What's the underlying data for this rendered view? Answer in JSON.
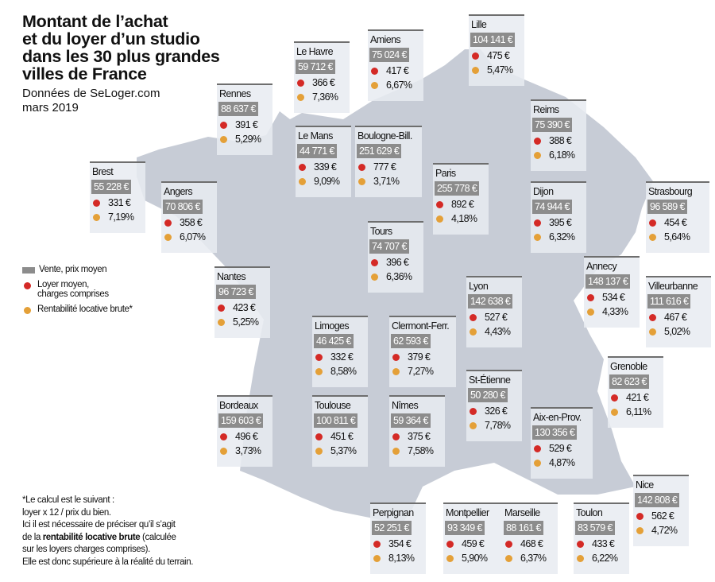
{
  "header": {
    "title_lines": [
      "Montant de l’achat",
      "et du loyer d’un studio",
      "dans les 30 plus grandes",
      "villes de France"
    ],
    "subtitle_lines": [
      "Données de SeLoger.com",
      "mars 2019"
    ]
  },
  "legend": {
    "sale": "Vente, prix moyen",
    "rent_line1": "Loyer moyen,",
    "rent_line2": "charges comprises",
    "yield": "Rentabilité locative brute*"
  },
  "colors": {
    "map": "#c7ccd6",
    "rent_dot": "#d42a26",
    "yield_dot": "#e4a038",
    "price_box": "#8c8c8c"
  },
  "note": {
    "line1": "*Le calcul est le suivant :",
    "line2": "loyer x 12 / prix du bien.",
    "line3": "Ici il est nécessaire de préciser qu’il s’agit",
    "line4_pre": "de la ",
    "line4_bold": "rentabilité locative brute",
    "line4_post": " (calculée",
    "line5": "sur les loyers charges comprises).",
    "line6": "Elle est donc supérieure à la réalité du terrain."
  },
  "cities": [
    {
      "name": "Lille",
      "price": "104 141 €",
      "rent": "475 €",
      "yield": "5,47%"
    },
    {
      "name": "Amiens",
      "price": "75 024 €",
      "rent": "417 €",
      "yield": "6,67%"
    },
    {
      "name": "Le Havre",
      "price": "59 712 €",
      "rent": "366 €",
      "yield": "7,36%"
    },
    {
      "name": "Rennes",
      "price": "88 637 €",
      "rent": "391 €",
      "yield": "5,29%"
    },
    {
      "name": "Reims",
      "price": "75 390 €",
      "rent": "388 €",
      "yield": "6,18%"
    },
    {
      "name": "Le Mans",
      "price": "44 771 €",
      "rent": "339 €",
      "yield": "9,09%"
    },
    {
      "name": "Boulogne-Bill.",
      "price": "251 629 €",
      "rent": "777 €",
      "yield": "3,71%"
    },
    {
      "name": "Paris",
      "price": "255 778 €",
      "rent": "892 €",
      "yield": "4,18%"
    },
    {
      "name": "Brest",
      "price": "55 228 €",
      "rent": "331 €",
      "yield": "7,19%"
    },
    {
      "name": "Angers",
      "price": "70 806 €",
      "rent": "358 €",
      "yield": "6,07%"
    },
    {
      "name": "Dijon",
      "price": "74 944 €",
      "rent": "395 €",
      "yield": "6,32%"
    },
    {
      "name": "Strasbourg",
      "price": "96 589 €",
      "rent": "454 €",
      "yield": "5,64%"
    },
    {
      "name": "Tours",
      "price": "74 707 €",
      "rent": "396 €",
      "yield": "6,36%"
    },
    {
      "name": "Nantes",
      "price": "96 723 €",
      "rent": "423 €",
      "yield": "5,25%"
    },
    {
      "name": "Annecy",
      "price": "148 137 €",
      "rent": "534 €",
      "yield": "4,33%"
    },
    {
      "name": "Villeurbanne",
      "price": "111 616 €",
      "rent": "467 €",
      "yield": "5,02%"
    },
    {
      "name": "Lyon",
      "price": "142 638 €",
      "rent": "527 €",
      "yield": "4,43%"
    },
    {
      "name": "Limoges",
      "price": "46 425 €",
      "rent": "332 €",
      "yield": "8,58%"
    },
    {
      "name": "Clermont-Ferr.",
      "price": "62 593 €",
      "rent": "379 €",
      "yield": "7,27%"
    },
    {
      "name": "Grenoble",
      "price": "82 623 €",
      "rent": "421 €",
      "yield": "6,11%"
    },
    {
      "name": "St-Étienne",
      "price": "50 280 €",
      "rent": "326 €",
      "yield": "7,78%"
    },
    {
      "name": "Bordeaux",
      "price": "159 603 €",
      "rent": "496 €",
      "yield": "3,73%"
    },
    {
      "name": "Toulouse",
      "price": "100 811 €",
      "rent": "451 €",
      "yield": "5,37%"
    },
    {
      "name": "Nîmes",
      "price": "59 364 €",
      "rent": "375 €",
      "yield": "7,58%"
    },
    {
      "name": "Aix-en-Prov.",
      "price": "130 356 €",
      "rent": "529 €",
      "yield": "4,87%"
    },
    {
      "name": "Nice",
      "price": "142 808 €",
      "rent": "562 €",
      "yield": "4,72%"
    },
    {
      "name": "Perpignan",
      "price": "52 251 €",
      "rent": "354 €",
      "yield": "8,13%"
    },
    {
      "name": "Montpellier",
      "price": "93 349 €",
      "rent": "459 €",
      "yield": "5,90%"
    },
    {
      "name": "Marseille",
      "price": "88 161 €",
      "rent": "468 €",
      "yield": "6,37%"
    },
    {
      "name": "Toulon",
      "price": "83 579 €",
      "rent": "433 €",
      "yield": "6,22%"
    }
  ]
}
